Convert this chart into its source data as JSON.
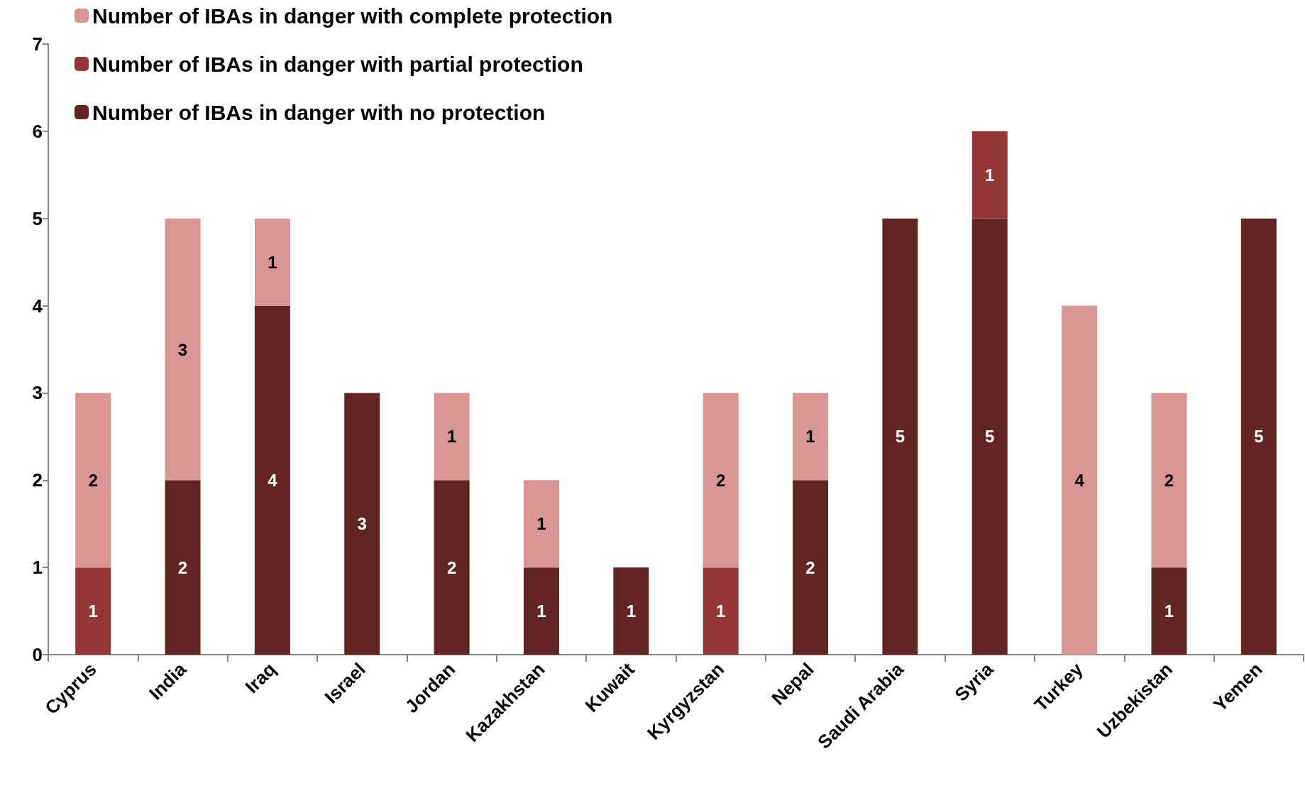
{
  "chart_data": {
    "type": "bar",
    "stacked": true,
    "data_labels": true,
    "grid": false,
    "legend": "top left",
    "categories": [
      "Cyprus",
      "India",
      "Iraq",
      "Israel",
      "Jordan",
      "Kazakhstan",
      "Kuwait",
      "Kyrgyzstan",
      "Nepal",
      "Saudi Arabia",
      "Syria",
      "Turkey",
      "Uzbekistan",
      "Yemen"
    ],
    "series": [
      {
        "name": "Number of IBAs in danger with no protection",
        "color": "#632523",
        "values": [
          null,
          2,
          4,
          3,
          2,
          1,
          1,
          null,
          2,
          5,
          5,
          null,
          1,
          5
        ]
      },
      {
        "name": "Number of IBAs in danger with partial protection",
        "color": "#953735",
        "values": [
          1,
          null,
          null,
          null,
          null,
          null,
          null,
          1,
          null,
          null,
          1,
          null,
          null,
          null
        ]
      },
      {
        "name": "Number of IBAs in danger with complete protection",
        "color": "#d99694",
        "values": [
          2,
          3,
          1,
          null,
          1,
          1,
          null,
          2,
          1,
          null,
          null,
          4,
          2,
          null
        ]
      }
    ],
    "ylim": [
      0,
      7
    ],
    "yticks": [
      0,
      1,
      2,
      3,
      4,
      5,
      6,
      7
    ]
  }
}
